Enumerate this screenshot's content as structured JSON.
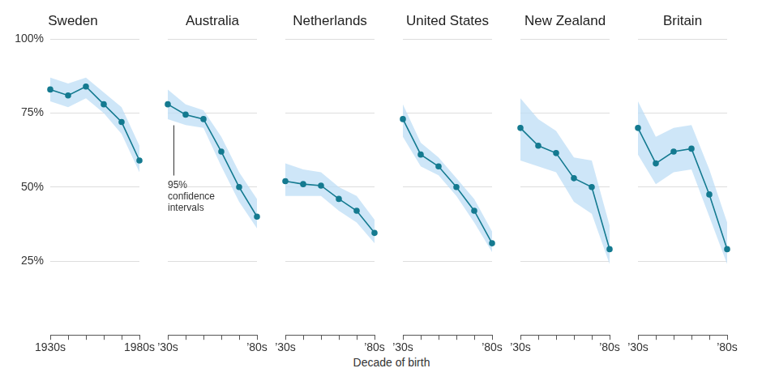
{
  "chart_data": [
    {
      "type": "line",
      "title": "Sweden",
      "categories": [
        "1930s",
        null,
        null,
        null,
        null,
        "1980s"
      ],
      "values": [
        83,
        81,
        84,
        78,
        72,
        59
      ],
      "ci_low": [
        79,
        77,
        80,
        75,
        68,
        55
      ],
      "ci_high": [
        87,
        85,
        87,
        82,
        77,
        64
      ],
      "color": "#147a90",
      "marker": "circle",
      "ylim": [
        0,
        100
      ],
      "yticks": [
        {
          "value": 25,
          "label": "25%"
        },
        {
          "value": 50,
          "label": "50%"
        },
        {
          "value": 75,
          "label": "75%"
        },
        {
          "value": 100,
          "label": "100%"
        }
      ],
      "grid": true
    },
    {
      "type": "line",
      "title": "Australia",
      "categories": [
        "’30s",
        null,
        null,
        null,
        null,
        "’80s"
      ],
      "values": [
        78,
        74.5,
        73,
        62,
        50,
        40
      ],
      "ci_low": [
        73,
        71,
        70,
        57,
        45,
        36
      ],
      "ci_high": [
        83,
        78,
        76,
        67,
        55,
        46
      ],
      "color": "#147a90",
      "marker": "circle",
      "ylim": [
        0,
        100
      ],
      "yticks": [
        {
          "value": 25,
          "label": "25%"
        },
        {
          "value": 50,
          "label": "50%"
        },
        {
          "value": 75,
          "label": "75%"
        },
        {
          "value": 100,
          "label": "100%"
        }
      ],
      "grid": true,
      "tick_labels": "x",
      "annotation": "95% confidence intervals"
    },
    {
      "type": "line",
      "title": "Netherlands",
      "categories": [
        "’30s",
        null,
        null,
        null,
        null,
        "’80s"
      ],
      "values": [
        52,
        51,
        50.5,
        46,
        42,
        34.5
      ],
      "ci_low": [
        47,
        47,
        47,
        42,
        38,
        31
      ],
      "ci_high": [
        58,
        56,
        55,
        50,
        47,
        39
      ],
      "color": "#147a90",
      "marker": "circle",
      "ylim": [
        0,
        100
      ],
      "yticks": [
        {
          "value": 25,
          "label": "25%"
        },
        {
          "value": 50,
          "label": "50%"
        },
        {
          "value": 75,
          "label": "75%"
        },
        {
          "value": 100,
          "label": "100%"
        }
      ],
      "grid": true,
      "tick_labels": "x"
    },
    {
      "type": "line",
      "title": "United States",
      "categories": [
        "’30s",
        null,
        null,
        null,
        null,
        "’80s"
      ],
      "values": [
        73,
        61,
        57,
        50,
        42,
        31
      ],
      "ci_low": [
        67,
        57,
        54,
        47,
        38,
        28
      ],
      "ci_high": [
        78,
        65,
        60,
        53,
        46,
        35
      ],
      "color": "#147a90",
      "marker": "circle",
      "ylim": [
        0,
        100
      ],
      "yticks": [
        {
          "value": 25,
          "label": "25%"
        },
        {
          "value": 50,
          "label": "50%"
        },
        {
          "value": 75,
          "label": "75%"
        },
        {
          "value": 100,
          "label": "100%"
        }
      ],
      "grid": true,
      "tick_labels": "x"
    },
    {
      "type": "line",
      "title": "New Zealand",
      "categories": [
        "’30s",
        null,
        null,
        null,
        null,
        "’80s"
      ],
      "values": [
        70,
        64,
        61.5,
        53,
        50,
        29
      ],
      "ci_low": [
        59,
        57,
        55,
        45,
        41,
        24
      ],
      "ci_high": [
        80,
        73,
        69,
        60,
        59,
        37
      ],
      "color": "#147a90",
      "marker": "circle",
      "ylim": [
        0,
        100
      ],
      "yticks": [
        {
          "value": 25,
          "label": "25%"
        },
        {
          "value": 50,
          "label": "50%"
        },
        {
          "value": 75,
          "label": "75%"
        },
        {
          "value": 100,
          "label": "100%"
        }
      ],
      "grid": true,
      "tick_labels": "x"
    },
    {
      "type": "line",
      "title": "Britain",
      "categories": [
        "’30s",
        null,
        null,
        null,
        null,
        "’80s"
      ],
      "values": [
        70,
        58,
        62,
        63,
        47.5,
        29
      ],
      "ci_low": [
        61,
        51,
        55,
        56,
        40,
        24
      ],
      "ci_high": [
        79,
        67,
        70,
        71,
        56,
        38
      ],
      "color": "#147a90",
      "marker": "circle",
      "ylim": [
        0,
        100
      ],
      "yticks": [
        {
          "value": 25,
          "label": "25%"
        },
        {
          "value": 50,
          "label": "50%"
        },
        {
          "value": 75,
          "label": "75%"
        },
        {
          "value": 100,
          "label": "100%"
        }
      ],
      "grid": true,
      "tick_labels": "x"
    }
  ],
  "xlabel": "Decade of birth"
}
